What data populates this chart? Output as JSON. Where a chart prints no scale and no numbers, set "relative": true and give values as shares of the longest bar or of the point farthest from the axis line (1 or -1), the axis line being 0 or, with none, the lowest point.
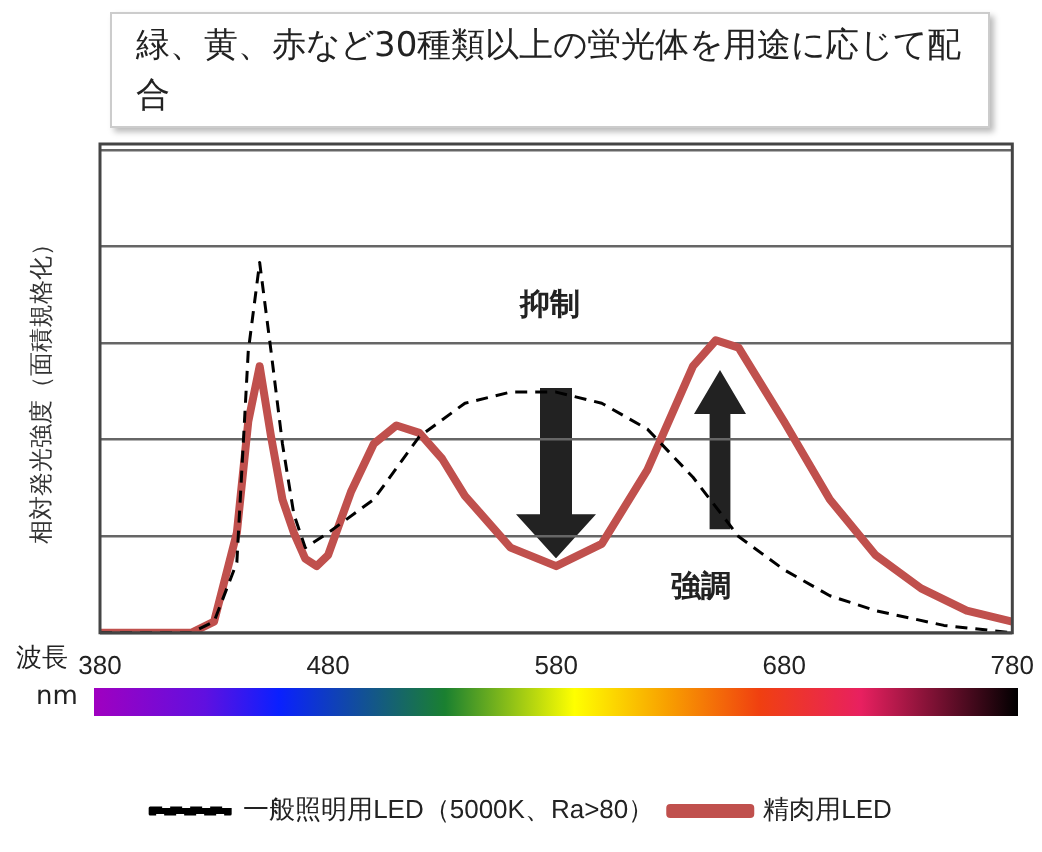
{
  "chart_data": {
    "type": "line",
    "title": "緑、黄、赤など30種類以上の蛍光体を用途に応じて配合",
    "xlabel": "波長",
    "ylabel": "相対発光強度（面積規格化）",
    "relative": true,
    "xlim": [
      380,
      780
    ],
    "xticks": [
      380,
      480,
      580,
      680,
      780
    ],
    "grid": "y",
    "legend": "bottom",
    "marker": "none",
    "annotations": [
      "抑制",
      "強調",
      "nm"
    ],
    "series": [
      {
        "name": "一般照明用LED（5000K、Ra>80）",
        "color": "#000000",
        "line_style": "dashed",
        "x": [
          380,
          420,
          430,
          440,
          445,
          450,
          455,
          460,
          465,
          470,
          480,
          500,
          520,
          540,
          560,
          580,
          600,
          620,
          640,
          660,
          680,
          700,
          720,
          750,
          780
        ],
        "values": [
          0,
          0,
          0.03,
          0.19,
          0.76,
          1,
          0.76,
          0.51,
          0.32,
          0.23,
          0.27,
          0.36,
          0.53,
          0.62,
          0.65,
          0.65,
          0.62,
          0.55,
          0.42,
          0.26,
          0.17,
          0.1,
          0.06,
          0.02,
          0
        ]
      },
      {
        "name": "精肉用LED",
        "color": "#c0504d",
        "line_style": "solid",
        "x": [
          380,
          420,
          430,
          440,
          445,
          450,
          455,
          460,
          465,
          470,
          475,
          480,
          490,
          500,
          510,
          520,
          530,
          540,
          560,
          580,
          600,
          620,
          640,
          650,
          660,
          680,
          700,
          720,
          740,
          760,
          780
        ],
        "values": [
          0,
          0,
          0.03,
          0.27,
          0.57,
          0.72,
          0.53,
          0.36,
          0.27,
          0.2,
          0.18,
          0.21,
          0.38,
          0.51,
          0.56,
          0.54,
          0.47,
          0.37,
          0.23,
          0.18,
          0.24,
          0.44,
          0.72,
          0.79,
          0.77,
          0.57,
          0.36,
          0.21,
          0.12,
          0.06,
          0.03
        ]
      }
    ]
  }
}
